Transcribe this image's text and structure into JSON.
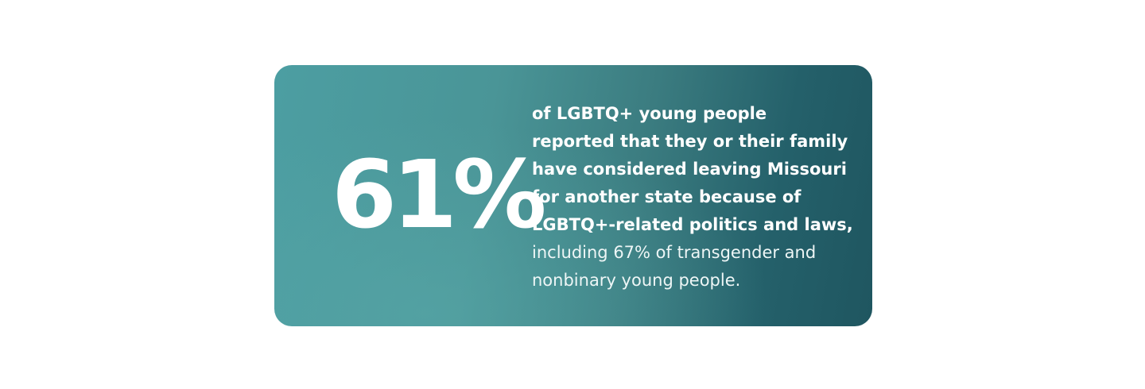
{
  "stat": "61%",
  "description": {
    "bold_lines": [
      "of LGBTQ+ young people",
      "reported that they or their family",
      "have considered leaving Missouri",
      "for another state because of",
      "LGBTQ+-related politics and laws,"
    ],
    "regular_lines": [
      "including 67% of transgender and",
      "nonbinary young people."
    ]
  }
}
